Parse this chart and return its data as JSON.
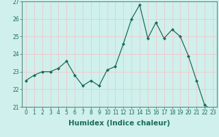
{
  "x": [
    0,
    1,
    2,
    3,
    4,
    5,
    6,
    7,
    8,
    9,
    10,
    11,
    12,
    13,
    14,
    15,
    16,
    17,
    18,
    19,
    20,
    21,
    22,
    23
  ],
  "y": [
    22.5,
    22.8,
    23.0,
    23.0,
    23.2,
    23.6,
    22.8,
    22.2,
    22.5,
    22.2,
    23.1,
    23.3,
    24.6,
    26.0,
    26.8,
    24.9,
    25.8,
    24.9,
    25.4,
    25.0,
    23.9,
    22.5,
    21.1,
    20.8
  ],
  "xlabel": "Humidex (Indice chaleur)",
  "ylim": [
    21,
    27
  ],
  "yticks": [
    21,
    22,
    23,
    24,
    25,
    26,
    27
  ],
  "xticks": [
    0,
    1,
    2,
    3,
    4,
    5,
    6,
    7,
    8,
    9,
    10,
    11,
    12,
    13,
    14,
    15,
    16,
    17,
    18,
    19,
    20,
    21,
    22,
    23
  ],
  "line_color": "#1a6b5a",
  "marker": "D",
  "marker_size": 2.0,
  "bg_color": "#cff0ec",
  "grid_color": "#f0c8c8",
  "axis_color": "#5a8a82",
  "tick_label_fontsize": 5.5,
  "xlabel_fontsize": 7.5
}
